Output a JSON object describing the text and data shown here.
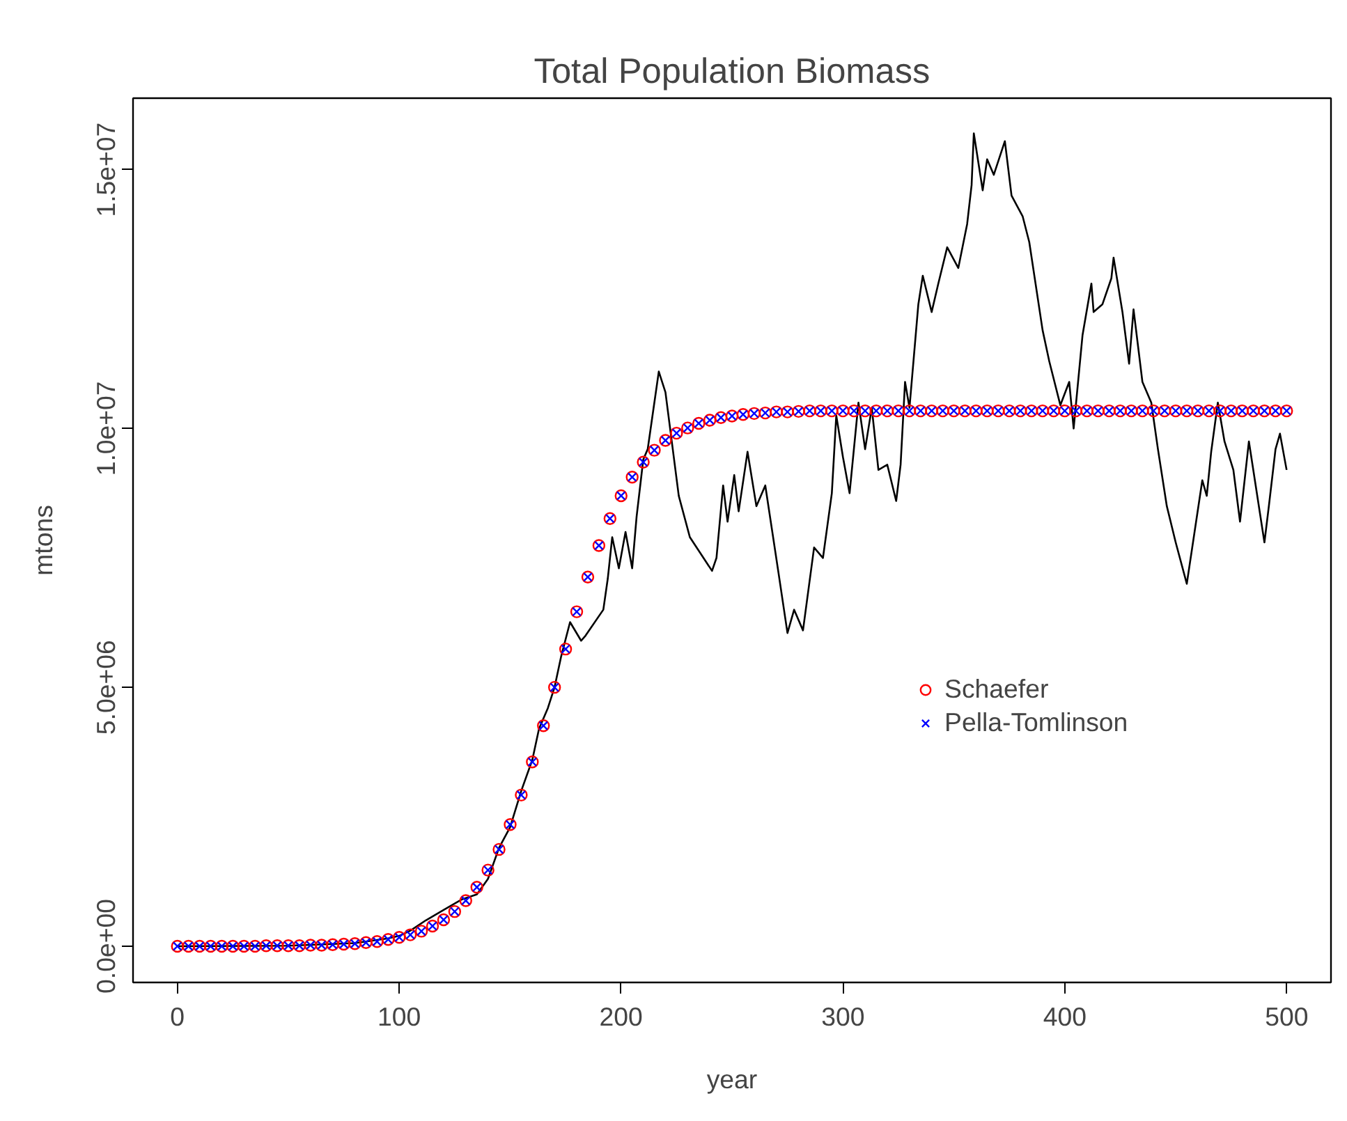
{
  "chart_data": {
    "type": "line",
    "title": "Total Population Biomass",
    "xlabel": "year",
    "ylabel": "mtons",
    "xlim": [
      -20,
      520
    ],
    "xticks": [
      0,
      100,
      200,
      300,
      400,
      500
    ],
    "ylim": [
      -700000,
      16380000
    ],
    "yticks": [
      {
        "value": 0,
        "label": "0.0e+00"
      },
      {
        "value": 5000000,
        "label": "5.0e+06"
      },
      {
        "value": 10000000,
        "label": "1.0e+07"
      },
      {
        "value": 15000000,
        "label": "1.5e+07"
      }
    ],
    "grid": false,
    "legend": "right",
    "series": [
      {
        "color": "#000000",
        "marker": "none",
        "line_style": "solid",
        "x": [
          0,
          50,
          80,
          95,
          100,
          105,
          112,
          120,
          128,
          135,
          140,
          145,
          150,
          155,
          160,
          163,
          167,
          170,
          173,
          177,
          182,
          184,
          192,
          194,
          196,
          199,
          202,
          205,
          207,
          210,
          212,
          214,
          217,
          220,
          226,
          231,
          241,
          243,
          246,
          248,
          251,
          253,
          257,
          261,
          265,
          271,
          275,
          278,
          282,
          287,
          291,
          295,
          297,
          300,
          303,
          307,
          310,
          313,
          316,
          320,
          324,
          326,
          328,
          330,
          334,
          336,
          340,
          343,
          347,
          352,
          356,
          358,
          359,
          363,
          365,
          368,
          373,
          376,
          381,
          384,
          390,
          393,
          398,
          402,
          404,
          408,
          412,
          413,
          417,
          421,
          422,
          426,
          429,
          431,
          435,
          439,
          442,
          446,
          450,
          455,
          462,
          464,
          466,
          469,
          472,
          476,
          479,
          483,
          490,
          492,
          495,
          497,
          500
        ],
        "values": [
          0,
          10000,
          60000,
          150000,
          200000,
          300000,
          500000,
          700000,
          900000,
          1000000,
          1300000,
          1900000,
          2300000,
          3000000,
          3600000,
          4200000,
          4600000,
          5000000,
          5600000,
          6260000,
          5900000,
          6000000,
          6500000,
          7100000,
          7900000,
          7300000,
          8000000,
          7300000,
          8300000,
          9400000,
          9600000,
          10200000,
          11100000,
          10700000,
          8700000,
          7900000,
          7250000,
          7500000,
          8900000,
          8200000,
          9100000,
          8400000,
          9550000,
          8500000,
          8900000,
          7200000,
          6050000,
          6500000,
          6100000,
          7700000,
          7500000,
          8750000,
          10250000,
          9450000,
          8750000,
          10500000,
          9600000,
          10400000,
          9200000,
          9300000,
          8600000,
          9300000,
          10900000,
          10400000,
          12400000,
          12950000,
          12250000,
          12800000,
          13500000,
          13100000,
          13950000,
          14700000,
          15700000,
          14600000,
          15200000,
          14900000,
          15550000,
          14500000,
          14100000,
          13600000,
          11900000,
          11300000,
          10450000,
          10900000,
          10000000,
          11800000,
          12800000,
          12250000,
          12400000,
          12900000,
          13300000,
          12250000,
          11250000,
          12300000,
          10900000,
          10500000,
          9600000,
          8500000,
          7800000,
          7000000,
          9000000,
          8700000,
          9550000,
          10500000,
          9750000,
          9200000,
          8200000,
          9750000,
          7800000,
          8500000,
          9600000,
          9900000,
          9200000
        ]
      },
      {
        "type": "scatter",
        "name": "Schaefer",
        "color": "#ff0000",
        "marker": "circle",
        "x": [
          0,
          5,
          10,
          15,
          20,
          25,
          30,
          35,
          40,
          45,
          50,
          55,
          60,
          65,
          70,
          75,
          80,
          85,
          90,
          95,
          100,
          105,
          110,
          115,
          120,
          125,
          130,
          135,
          140,
          145,
          150,
          155,
          160,
          165,
          170,
          175,
          180,
          185,
          190,
          195,
          200,
          205,
          210,
          215,
          220,
          225,
          230,
          235,
          240,
          245,
          250,
          255,
          260,
          265,
          270,
          275,
          280,
          285,
          290,
          295,
          300,
          305,
          310,
          315,
          320,
          325,
          330,
          335,
          340,
          345,
          350,
          355,
          360,
          365,
          370,
          375,
          380,
          385,
          390,
          395,
          400,
          405,
          410,
          415,
          420,
          425,
          430,
          435,
          440,
          445,
          450,
          455,
          460,
          465,
          470,
          475,
          480,
          485,
          490,
          495,
          500
        ],
        "values": [
          0,
          0,
          0,
          0,
          0,
          0,
          0,
          0,
          10000,
          10000,
          10000,
          10000,
          20000,
          20000,
          30000,
          40000,
          50000,
          70000,
          90000,
          130000,
          170000,
          220000,
          290000,
          390000,
          510000,
          670000,
          880000,
          1140000,
          1470000,
          1870000,
          2350000,
          2920000,
          3560000,
          4260000,
          5000000,
          5740000,
          6460000,
          7130000,
          7740000,
          8260000,
          8700000,
          9060000,
          9350000,
          9580000,
          9770000,
          9910000,
          10010000,
          10100000,
          10160000,
          10210000,
          10240000,
          10270000,
          10290000,
          10300000,
          10320000,
          10320000,
          10330000,
          10340000,
          10340000,
          10340000,
          10340000,
          10340000,
          10340000,
          10340000,
          10340000,
          10340000,
          10340000,
          10340000,
          10340000,
          10340000,
          10340000,
          10340000,
          10340000,
          10340000,
          10340000,
          10340000,
          10340000,
          10340000,
          10340000,
          10340000,
          10340000,
          10340000,
          10340000,
          10340000,
          10340000,
          10340000,
          10340000,
          10340000,
          10340000,
          10340000,
          10340000,
          10340000,
          10340000,
          10340000,
          10340000,
          10340000,
          10340000,
          10340000,
          10340000,
          10340000,
          10340000
        ]
      },
      {
        "type": "scatter",
        "name": "Pella-Tomlinson",
        "color": "#0000ff",
        "marker": "cross",
        "x": [
          0,
          5,
          10,
          15,
          20,
          25,
          30,
          35,
          40,
          45,
          50,
          55,
          60,
          65,
          70,
          75,
          80,
          85,
          90,
          95,
          100,
          105,
          110,
          115,
          120,
          125,
          130,
          135,
          140,
          145,
          150,
          155,
          160,
          165,
          170,
          175,
          180,
          185,
          190,
          195,
          200,
          205,
          210,
          215,
          220,
          225,
          230,
          235,
          240,
          245,
          250,
          255,
          260,
          265,
          270,
          275,
          280,
          285,
          290,
          295,
          300,
          305,
          310,
          315,
          320,
          325,
          330,
          335,
          340,
          345,
          350,
          355,
          360,
          365,
          370,
          375,
          380,
          385,
          390,
          395,
          400,
          405,
          410,
          415,
          420,
          425,
          430,
          435,
          440,
          445,
          450,
          455,
          460,
          465,
          470,
          475,
          480,
          485,
          490,
          495,
          500
        ],
        "values": [
          0,
          0,
          0,
          0,
          0,
          0,
          0,
          0,
          10000,
          10000,
          10000,
          10000,
          20000,
          20000,
          30000,
          40000,
          50000,
          70000,
          90000,
          130000,
          170000,
          220000,
          290000,
          390000,
          510000,
          670000,
          880000,
          1140000,
          1470000,
          1870000,
          2350000,
          2920000,
          3560000,
          4260000,
          5000000,
          5740000,
          6460000,
          7130000,
          7740000,
          8260000,
          8700000,
          9060000,
          9350000,
          9580000,
          9770000,
          9910000,
          10010000,
          10100000,
          10160000,
          10210000,
          10240000,
          10270000,
          10290000,
          10300000,
          10320000,
          10320000,
          10330000,
          10340000,
          10340000,
          10340000,
          10340000,
          10340000,
          10340000,
          10340000,
          10340000,
          10340000,
          10340000,
          10340000,
          10340000,
          10340000,
          10340000,
          10340000,
          10340000,
          10340000,
          10340000,
          10340000,
          10340000,
          10340000,
          10340000,
          10340000,
          10340000,
          10340000,
          10340000,
          10340000,
          10340000,
          10340000,
          10340000,
          10340000,
          10340000,
          10340000,
          10340000,
          10340000,
          10340000,
          10340000,
          10340000,
          10340000,
          10340000,
          10340000,
          10340000,
          10340000,
          10340000
        ]
      }
    ]
  }
}
